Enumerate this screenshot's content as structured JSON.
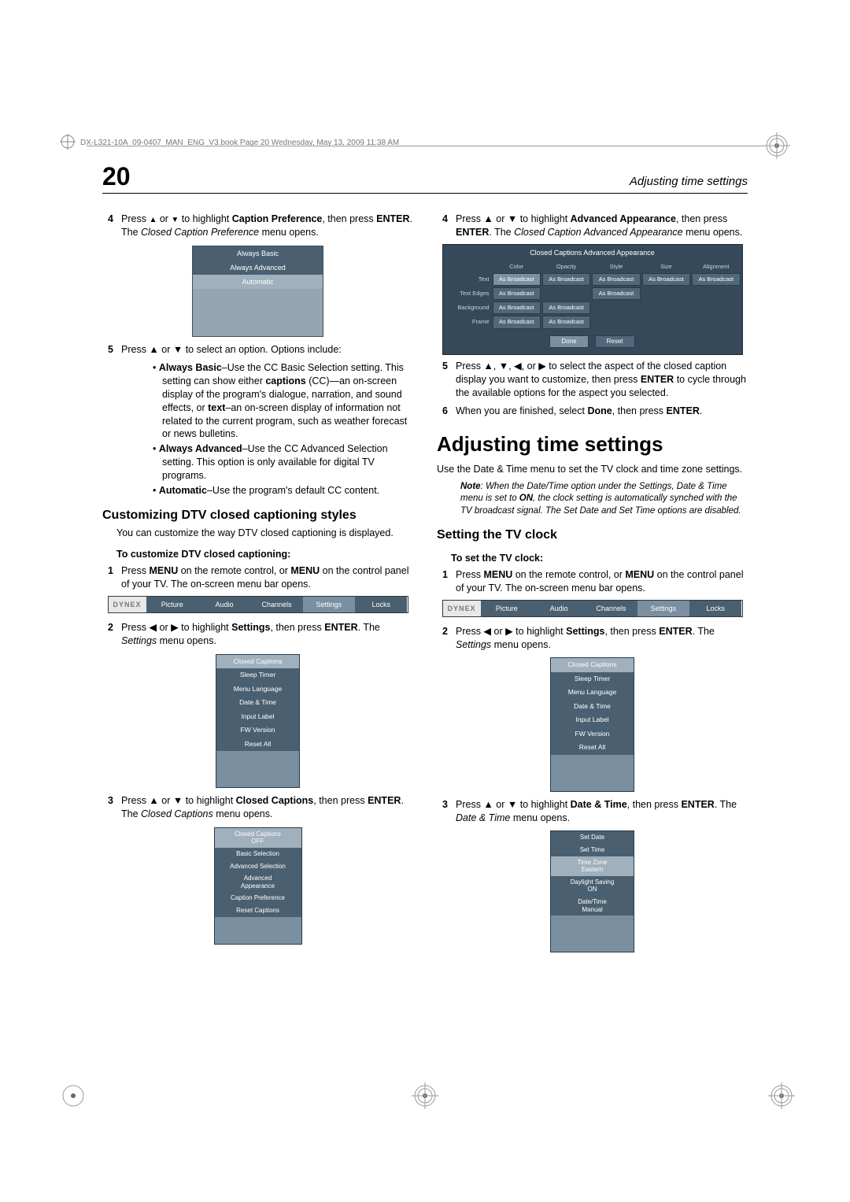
{
  "header_text": "DX-L321-10A_09-0407_MAN_ENG_V3.book  Page 20  Wednesday, May 13, 2009  11:38 AM",
  "page_number": "20",
  "running_title": "Adjusting time settings",
  "colors": {
    "menu_dark": "#4a6070",
    "menu_mid": "#7a8fa0",
    "menu_light": "#a0b0bc",
    "menu_border": "#2a3a47",
    "adv_bg": "#35495a",
    "cell_bg": "#51687a"
  },
  "left": {
    "step4_pre": "Press ",
    "step4_mid": " to highlight ",
    "step4_bold": "Caption Preference",
    "step4_post": ", then press ",
    "step4_enter": "ENTER",
    "step4_ital": "Closed Caption Preference",
    "step4_tail": " menu opens.",
    "pref_menu": {
      "items": [
        "Always Basic",
        "Always Advanced",
        "Automatic"
      ],
      "highlight_index": 2
    },
    "step5_text": "Press ▲ or ▼ to select an option. Options include:",
    "bullets": [
      {
        "lead": "Always Basic",
        "body": "–Use the CC Basic Selection setting. This setting can show either ",
        "b1": "captions",
        "body2": " (CC)—an on-screen display of the program's dialogue, narration, and sound effects, or ",
        "b2": "text",
        "body3": "–an on-screen display of information not related to the current program, such as weather forecast or news bulletins."
      },
      {
        "lead": "Always Advanced",
        "body": "–Use the CC Advanced Selection setting. This option is only available for digital TV programs."
      },
      {
        "lead": "Automatic",
        "body": "–Use the program's default CC content."
      }
    ],
    "h2": "Customizing DTV closed captioning styles",
    "h2_sub": "You can customize the way DTV closed captioning is displayed.",
    "proc_head": "To customize DTV closed captioning:",
    "s1": {
      "pre": "Press ",
      "b1": "MENU",
      "mid": " on the remote control, or ",
      "b2": "MENU",
      "post": " on the control panel of your TV. The on-screen menu bar opens."
    },
    "menubar": {
      "logo": "DYNEX",
      "tabs": [
        "Picture",
        "Audio",
        "Channels",
        "Settings",
        "Locks"
      ],
      "selected": 3
    },
    "s2": {
      "pre": "Press ◀ or ▶ to highlight ",
      "b1": "Settings",
      "mid": ", then press ",
      "b2": "ENTER",
      "post": ". The ",
      "ital": "Settings",
      "tail": " menu opens."
    },
    "settings_menu": {
      "items": [
        "Closed Captions",
        "Sleep Timer",
        "Menu Language",
        "Date & Time",
        "Input Label",
        "FW Version",
        "Reset All"
      ],
      "highlight_index": 0
    },
    "s3": {
      "pre": "Press ▲ or ▼ to highlight ",
      "b1": "Closed Captions",
      "mid": ", then press ",
      "b2": "ENTER",
      "post": ". The ",
      "ital": "Closed Captions",
      "tail": " menu opens."
    },
    "cc_menu": {
      "items": [
        "Closed Captions\nOFF",
        "Basic Selection",
        "Advanced Selection",
        "Advanced\nAppearance",
        "Caption Preference",
        "Reset Captions"
      ],
      "highlight_index": 0
    }
  },
  "right": {
    "step4_pre": "Press ▲ or ▼ to highlight ",
    "step4_bold": "Advanced Appearance",
    "step4_mid": ", then press ",
    "step4_enter": "ENTER",
    "step4_ital": "Closed Caption Advanced Appearance",
    "step4_tail": " menu opens.",
    "adv": {
      "title": "Closed Captions Advanced Appearance",
      "cols": [
        "Color",
        "Opacity",
        "Style",
        "Size",
        "Alignment"
      ],
      "rows": [
        {
          "label": "Text",
          "cells": [
            "As Broadcast",
            "As Broadcast",
            "As Broadcast",
            "As Broadcast",
            "As Broadcast"
          ]
        },
        {
          "label": "Text Edges",
          "cells": [
            "As Broadcast",
            "",
            "As Broadcast",
            "",
            ""
          ]
        },
        {
          "label": "Background",
          "cells": [
            "As Broadcast",
            "As Broadcast",
            "",
            "",
            ""
          ]
        },
        {
          "label": "Frame",
          "cells": [
            "As Broadcast",
            "As Broadcast",
            "",
            "",
            ""
          ]
        }
      ],
      "buttons": [
        "Done",
        "Reset"
      ]
    },
    "step5": "Press ▲, ▼, ◀, or ▶ to select the aspect of the closed caption display you want to customize, then press ENTER to cycle through the available options for the aspect you selected.",
    "step5_b": "ENTER",
    "step6_pre": "When you are finished, select ",
    "step6_b1": "Done",
    "step6_mid": ", then press ",
    "step6_b2": "ENTER",
    "step6_post": ".",
    "h1": "Adjusting time settings",
    "h1_sub": "Use the Date & Time menu to set the TV clock and time zone settings.",
    "note_lead": "Note",
    "note_body": ": When the Date/Time option under the Settings, Date & Time menu is set to ",
    "note_b": "ON",
    "note_tail": ", the clock setting is automatically synched with the TV broadcast signal. The Set Date and Set Time options are disabled.",
    "h2": "Setting the TV clock",
    "proc_head": "To set the TV clock:",
    "s1": {
      "pre": "Press ",
      "b1": "MENU",
      "mid": " on the remote control, or ",
      "b2": "MENU",
      "post": " on the control panel of your TV. The on-screen menu bar opens."
    },
    "menubar": {
      "logo": "DYNEX",
      "tabs": [
        "Picture",
        "Audio",
        "Channels",
        "Settings",
        "Locks"
      ],
      "selected": 3
    },
    "s2": {
      "pre": "Press ◀ or ▶ to highlight ",
      "b1": "Settings",
      "mid": ", then press ",
      "b2": "ENTER",
      "post": ". The ",
      "ital": "Settings",
      "tail": " menu opens."
    },
    "settings_menu": {
      "items": [
        "Closed Captions",
        "Sleep Timer",
        "Menu Language",
        "Date & Time",
        "Input Label",
        "FW Version",
        "Reset All"
      ],
      "highlight_index": 0
    },
    "s3": {
      "pre": "Press ▲ or ▼ to highlight ",
      "b1": "Date & Time",
      "mid": ", then press ",
      "b2": "ENTER",
      "post": ". The ",
      "ital": "Date & Time",
      "tail": " menu opens."
    },
    "dt_menu": {
      "items": [
        "Set Date",
        "Set Time",
        "Time Zone\nEastern",
        "Daylight Saving\nON",
        "Date/Time\nManual"
      ],
      "highlight_index": 2
    }
  }
}
